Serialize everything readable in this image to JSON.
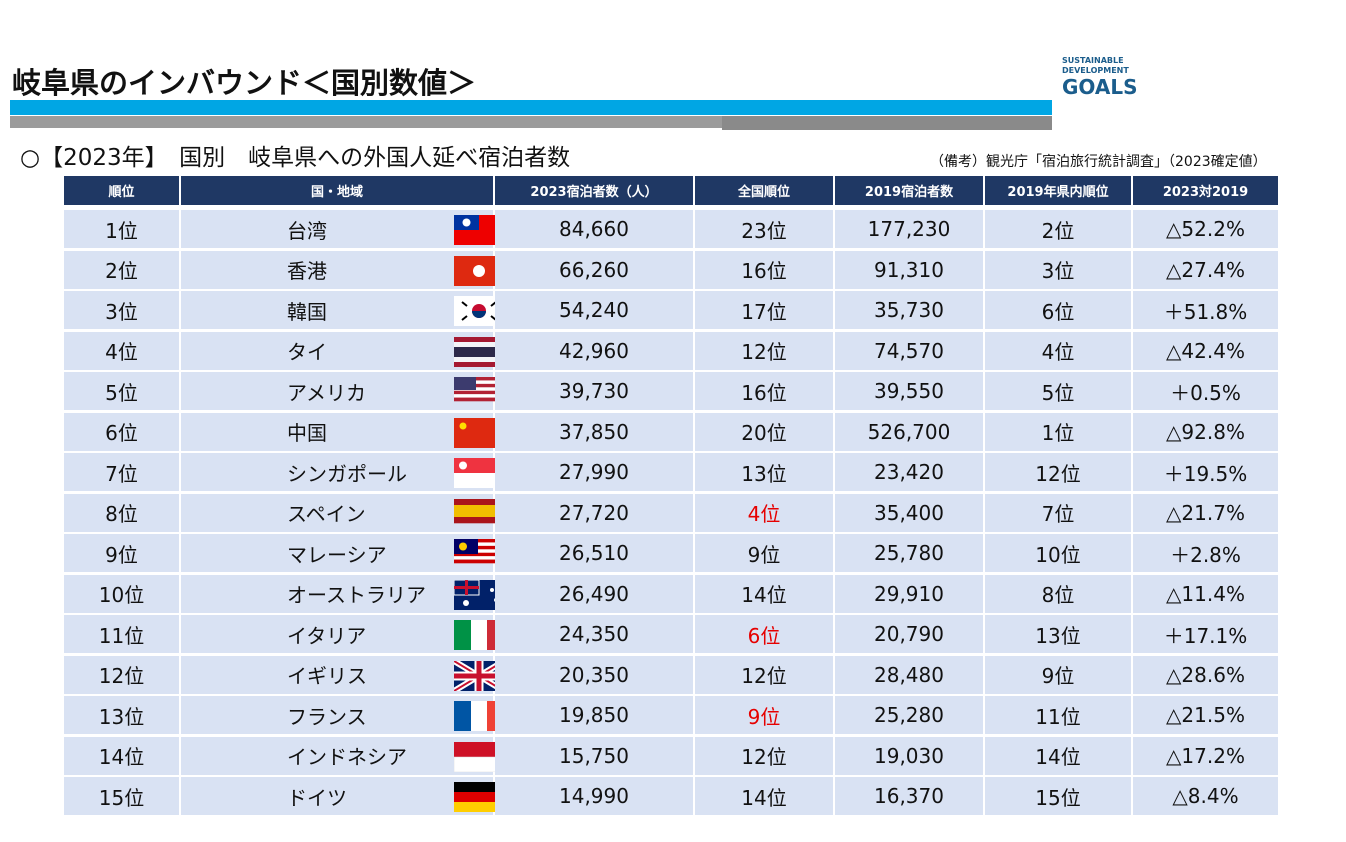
{
  "header": {
    "title": "岐阜県のインバウンド＜国別数値＞",
    "logo": [
      "SUSTAINABLE",
      "DEVELOPMENT",
      "GOALS"
    ]
  },
  "subtitle": "○【2023年】　国別　岐阜県への外国人延べ宿泊者数",
  "note": "（備考）観光庁「宿泊旅行統計調査」（2023確定値）",
  "table": {
    "columns": [
      "順位",
      "国・地域",
      "2023宿泊者数（人）",
      "全国順位",
      "2019宿泊者数",
      "2019年県内順位",
      "2023対2019"
    ],
    "rows": [
      [
        "1位",
        "台湾",
        "84,660",
        "23位",
        "177,230",
        "2位",
        "△52.2%"
      ],
      [
        "2位",
        "香港",
        "66,260",
        "16位",
        "91,310",
        "3位",
        "△27.4%"
      ],
      [
        "3位",
        "韓国",
        "54,240",
        "17位",
        "35,730",
        "6位",
        "＋51.8%"
      ],
      [
        "4位",
        "タイ",
        "42,960",
        "12位",
        "74,570",
        "4位",
        "△42.4%"
      ],
      [
        "5位",
        "アメリカ",
        "39,730",
        "16位",
        "39,550",
        "5位",
        "＋0.5%"
      ],
      [
        "6位",
        "中国",
        "37,850",
        "20位",
        "526,700",
        "1位",
        "△92.8%"
      ],
      [
        "7位",
        "シンガポール",
        "27,990",
        "13位",
        "23,420",
        "12位",
        "＋19.5%"
      ],
      [
        "8位",
        "スペイン",
        "27,720",
        "4位",
        "35,400",
        "7位",
        "△21.7%"
      ],
      [
        "9位",
        "マレーシア",
        "26,510",
        "9位",
        "25,780",
        "10位",
        "＋2.8%"
      ],
      [
        "10位",
        "オーストラリア",
        "26,490",
        "14位",
        "29,910",
        "8位",
        "△11.4%"
      ],
      [
        "11位",
        "イタリア",
        "24,350",
        "6位",
        "20,790",
        "13位",
        "＋17.1%"
      ],
      [
        "12位",
        "イギリス",
        "20,350",
        "12位",
        "28,480",
        "9位",
        "△28.6%"
      ],
      [
        "13位",
        "フランス",
        "19,850",
        "9位",
        "25,280",
        "11位",
        "△21.5%"
      ],
      [
        "14位",
        "インドネシア",
        "15,750",
        "12位",
        "19,030",
        "14位",
        "△17.2%"
      ],
      [
        "15位",
        "ドイツ",
        "14,990",
        "14位",
        "16,370",
        "15位",
        "△8.4%"
      ]
    ]
  }
}
